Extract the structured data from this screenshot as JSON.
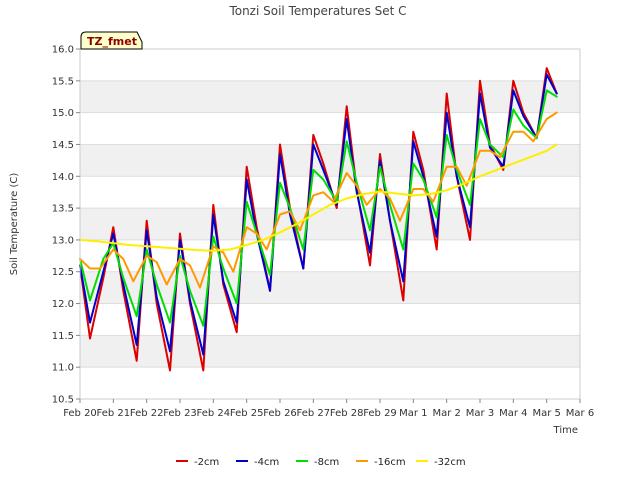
{
  "chart_data": {
    "type": "line",
    "title": "Tonzi Soil Temperatures Set C",
    "xlabel": "Time",
    "ylabel": "Soil Temperature (C)",
    "badge": "TZ_fmet",
    "ylim": [
      10.5,
      16.0
    ],
    "yticks": [
      "10.5",
      "11.0",
      "11.5",
      "12.0",
      "12.5",
      "13.0",
      "13.5",
      "14.0",
      "14.5",
      "15.0",
      "15.5",
      "16.0"
    ],
    "xlim": [
      0,
      15
    ],
    "xticks": [
      "Feb 20",
      "Feb 21",
      "Feb 22",
      "Feb 23",
      "Feb 24",
      "Feb 25",
      "Feb 26",
      "Feb 27",
      "Feb 28",
      "Feb 29",
      "Mar 1",
      "Mar 2",
      "Mar 3",
      "Mar 4",
      "Mar 5",
      "Mar 6"
    ],
    "grid": true,
    "legend_position": "bottom",
    "series": [
      {
        "name": "-2cm",
        "color": "#dd0000",
        "x": [
          0.0,
          0.3,
          0.7,
          1.0,
          1.3,
          1.7,
          2.0,
          2.3,
          2.7,
          3.0,
          3.3,
          3.7,
          4.0,
          4.3,
          4.7,
          5.0,
          5.3,
          5.7,
          6.0,
          6.3,
          6.7,
          7.0,
          7.3,
          7.7,
          8.0,
          8.3,
          8.7,
          9.0,
          9.3,
          9.7,
          10.0,
          10.3,
          10.7,
          11.0,
          11.3,
          11.7,
          12.0,
          12.3,
          12.7,
          13.0,
          13.3,
          13.7,
          14.0,
          14.3
        ],
        "y": [
          12.6,
          11.45,
          12.4,
          13.2,
          12.2,
          11.1,
          13.3,
          12.0,
          10.95,
          13.1,
          12.0,
          10.95,
          13.55,
          12.3,
          11.55,
          14.15,
          13.2,
          12.2,
          14.5,
          13.5,
          12.55,
          14.65,
          14.2,
          13.5,
          15.1,
          13.8,
          12.6,
          14.35,
          13.3,
          12.05,
          14.7,
          14.1,
          12.85,
          15.3,
          14.0,
          13.0,
          15.5,
          14.5,
          14.1,
          15.5,
          15.0,
          14.6,
          15.7,
          15.3
        ]
      },
      {
        "name": "-4cm",
        "color": "#0000cc",
        "x": [
          0.0,
          0.3,
          0.7,
          1.0,
          1.3,
          1.7,
          2.0,
          2.3,
          2.7,
          3.0,
          3.3,
          3.7,
          4.0,
          4.3,
          4.7,
          5.0,
          5.3,
          5.7,
          6.0,
          6.3,
          6.7,
          7.0,
          7.3,
          7.7,
          8.0,
          8.3,
          8.7,
          9.0,
          9.3,
          9.7,
          10.0,
          10.3,
          10.7,
          11.0,
          11.3,
          11.7,
          12.0,
          12.3,
          12.7,
          13.0,
          13.3,
          13.7,
          14.0,
          14.3
        ],
        "y": [
          12.6,
          11.7,
          12.5,
          13.1,
          12.3,
          11.35,
          13.15,
          12.1,
          11.25,
          13.0,
          12.05,
          11.2,
          13.4,
          12.35,
          11.7,
          13.95,
          13.1,
          12.2,
          14.35,
          13.4,
          12.55,
          14.5,
          14.1,
          13.55,
          14.9,
          13.75,
          12.8,
          14.25,
          13.3,
          12.35,
          14.55,
          14.0,
          13.05,
          15.0,
          14.0,
          13.2,
          15.3,
          14.45,
          14.15,
          15.35,
          14.95,
          14.6,
          15.6,
          15.3
        ]
      },
      {
        "name": "-8cm",
        "color": "#00dd00",
        "x": [
          0.0,
          0.3,
          0.7,
          1.0,
          1.3,
          1.7,
          2.0,
          2.3,
          2.7,
          3.0,
          3.3,
          3.7,
          4.0,
          4.3,
          4.7,
          5.0,
          5.3,
          5.7,
          6.0,
          6.3,
          6.7,
          7.0,
          7.3,
          7.7,
          8.0,
          8.3,
          8.7,
          9.0,
          9.3,
          9.7,
          10.0,
          10.3,
          10.7,
          11.0,
          11.3,
          11.7,
          12.0,
          12.3,
          12.7,
          13.0,
          13.3,
          13.7,
          14.0,
          14.3
        ],
        "y": [
          12.7,
          12.05,
          12.7,
          12.95,
          12.4,
          11.8,
          12.85,
          12.3,
          11.7,
          12.75,
          12.2,
          11.65,
          13.05,
          12.55,
          12.0,
          13.6,
          13.1,
          12.45,
          13.9,
          13.5,
          12.85,
          14.1,
          13.95,
          13.6,
          14.55,
          13.9,
          13.15,
          14.15,
          13.55,
          12.85,
          14.2,
          13.95,
          13.35,
          14.65,
          14.1,
          13.55,
          14.9,
          14.5,
          14.3,
          15.05,
          14.8,
          14.6,
          15.35,
          15.25
        ]
      },
      {
        "name": "-16cm",
        "color": "#ff9900",
        "x": [
          0.0,
          0.3,
          0.6,
          1.0,
          1.3,
          1.6,
          2.0,
          2.3,
          2.6,
          3.0,
          3.3,
          3.6,
          4.0,
          4.3,
          4.6,
          5.0,
          5.3,
          5.6,
          6.0,
          6.3,
          6.6,
          7.0,
          7.3,
          7.6,
          8.0,
          8.3,
          8.6,
          9.0,
          9.3,
          9.6,
          10.0,
          10.3,
          10.6,
          11.0,
          11.3,
          11.6,
          12.0,
          12.3,
          12.6,
          13.0,
          13.3,
          13.6,
          14.0,
          14.3
        ],
        "y": [
          12.7,
          12.55,
          12.55,
          12.85,
          12.7,
          12.35,
          12.75,
          12.65,
          12.3,
          12.7,
          12.6,
          12.25,
          12.9,
          12.8,
          12.5,
          13.2,
          13.1,
          12.85,
          13.4,
          13.45,
          13.15,
          13.7,
          13.75,
          13.6,
          14.05,
          13.85,
          13.55,
          13.8,
          13.65,
          13.3,
          13.8,
          13.8,
          13.6,
          14.15,
          14.15,
          13.85,
          14.4,
          14.4,
          14.3,
          14.7,
          14.7,
          14.55,
          14.9,
          15.0
        ]
      },
      {
        "name": "-32cm",
        "color": "#ffee00",
        "x": [
          0.0,
          0.5,
          1.0,
          1.5,
          2.0,
          2.5,
          3.0,
          3.5,
          4.0,
          4.5,
          5.0,
          5.5,
          6.0,
          6.5,
          7.0,
          7.5,
          8.0,
          8.5,
          9.0,
          9.5,
          10.0,
          10.5,
          11.0,
          11.5,
          12.0,
          12.5,
          13.0,
          13.5,
          14.0,
          14.3
        ],
        "y": [
          13.0,
          12.98,
          12.95,
          12.92,
          12.9,
          12.88,
          12.86,
          12.84,
          12.83,
          12.85,
          12.92,
          13.0,
          13.12,
          13.25,
          13.4,
          13.55,
          13.65,
          13.72,
          13.76,
          13.73,
          13.7,
          13.72,
          13.78,
          13.88,
          14.0,
          14.1,
          14.2,
          14.3,
          14.4,
          14.5
        ]
      }
    ]
  }
}
